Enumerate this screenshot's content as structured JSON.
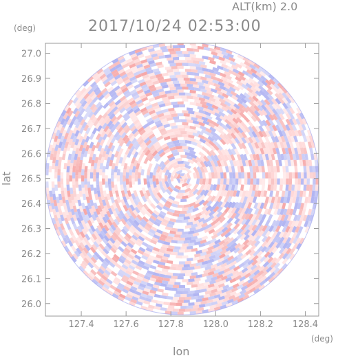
{
  "chart_data": {
    "type": "heatmap",
    "title": "2017/10/24 02:53:00",
    "subtitle": "ALT(km) 2.0",
    "xlabel": "lon",
    "ylabel": "lat",
    "x_unit": "(deg)",
    "y_unit": "(deg)",
    "xlim": [
      127.24,
      128.46
    ],
    "ylim": [
      25.95,
      27.04
    ],
    "x_ticks": [
      "127.4",
      "127.6",
      "127.8",
      "128.0",
      "128.2",
      "128.4"
    ],
    "y_ticks": [
      "26.0",
      "26.1",
      "26.2",
      "26.3",
      "26.4",
      "26.5",
      "26.6",
      "26.7",
      "26.8",
      "26.9",
      "27.0"
    ],
    "radar_center": [
      127.85,
      26.5
    ],
    "radar_radius_deg_lat": 0.545,
    "colors": {
      "positive": "#f6a8a8",
      "negative": "#b0b4f2",
      "neutral": "#ffffff",
      "axis": "#999999"
    },
    "grid": false
  }
}
